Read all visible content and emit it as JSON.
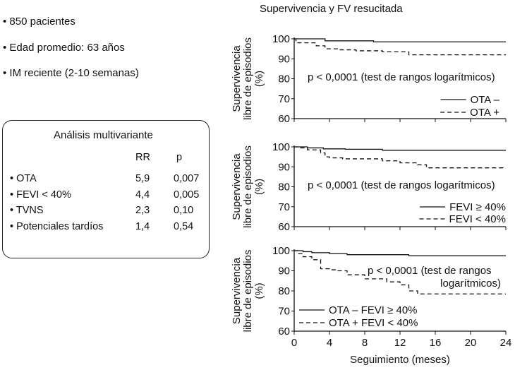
{
  "bullets": [
    "• 850 pacientes",
    "• Edad promedio: 63 años",
    "• IM reciente (2-10 semanas)"
  ],
  "table": {
    "title": "Análisis multivariante",
    "headers": [
      "RR",
      "p"
    ],
    "rows": [
      {
        "label": "• OTA",
        "rr": "5,9",
        "p": "0,007"
      },
      {
        "label": "• FEVI < 40%",
        "rr": "4,4",
        "p": "0,005"
      },
      {
        "label": "• TVNS",
        "rr": "2,3",
        "p": "0,10"
      },
      {
        "label": "• Potenciales tardíos",
        "rr": "1,4",
        "p": "0,54"
      }
    ]
  },
  "chart_data": [
    {
      "type": "line",
      "title": "Supervivencia y FV resucitada",
      "ylabel": "Supervivencia libre de episodios (%)",
      "xlabel": "",
      "xlim": [
        0,
        24
      ],
      "ylim": [
        60,
        100
      ],
      "yticks": [
        60,
        70,
        80,
        90,
        100
      ],
      "xticks": [
        0,
        4,
        8,
        12,
        16,
        20,
        24
      ],
      "annotation": [
        "p < 0,0001 (test de rangos logarítmicos)"
      ],
      "series": [
        {
          "name": "OTA –",
          "style": "solid",
          "x": [
            0,
            3.5,
            3.5,
            9,
            9,
            24
          ],
          "y": [
            100,
            100,
            99,
            99,
            98.5,
            98.5
          ]
        },
        {
          "name": "OTA +",
          "style": "dashed",
          "x": [
            0,
            0.2,
            0.2,
            2.5,
            2.5,
            3.5,
            3.5,
            5,
            5,
            7,
            7,
            10,
            10,
            13,
            13,
            24
          ],
          "y": [
            100,
            100,
            98,
            98,
            96.5,
            96.5,
            95,
            95,
            94.5,
            94.5,
            94,
            94,
            93.5,
            93.5,
            92,
            92
          ]
        }
      ]
    },
    {
      "type": "line",
      "ylabel": "Supervivencia libre de episodios (%)",
      "xlabel": "",
      "xlim": [
        0,
        24
      ],
      "ylim": [
        60,
        100
      ],
      "yticks": [
        60,
        70,
        80,
        90,
        100
      ],
      "xticks": [
        0,
        4,
        8,
        12,
        16,
        20,
        24
      ],
      "annotation": [
        "p < 0,0001 (test de rangos logarítmicos)"
      ],
      "series": [
        {
          "name": "FEVI ≥ 40%",
          "style": "solid",
          "x": [
            0,
            1.5,
            1.5,
            3.3,
            3.3,
            5.8,
            5.8,
            10,
            10,
            24
          ],
          "y": [
            100,
            100,
            99.5,
            99.5,
            99,
            99,
            98.8,
            98.8,
            98.3,
            98.3
          ]
        },
        {
          "name": "FEVI < 40%",
          "style": "dashed",
          "x": [
            0,
            0.5,
            0.5,
            1.5,
            1.5,
            3,
            3,
            3.5,
            3.5,
            4,
            4,
            5.5,
            5.5,
            10,
            10,
            12,
            12,
            14,
            14,
            15,
            15,
            24
          ],
          "y": [
            100,
            100,
            99.5,
            99.5,
            98.5,
            98.5,
            97,
            97,
            95,
            95,
            94.5,
            94.5,
            94,
            94,
            93,
            93,
            92,
            92,
            91,
            91,
            89.5,
            89.5
          ]
        }
      ]
    },
    {
      "type": "line",
      "ylabel": "Supervivencia libre de episodios (%)",
      "xlabel": "Seguimiento (meses)",
      "xlim": [
        0,
        24
      ],
      "ylim": [
        60,
        100
      ],
      "yticks": [
        60,
        70,
        80,
        90,
        100
      ],
      "xticks": [
        0,
        4,
        8,
        12,
        16,
        20,
        24
      ],
      "annotation": [
        "p < 0,0001  (test de rangos",
        "logarítmicos)"
      ],
      "series": [
        {
          "name": "OTA – FEVI ≥ 40%",
          "style": "solid",
          "x": [
            0,
            1,
            1,
            2,
            2,
            4,
            4,
            6,
            6,
            13,
            13,
            24
          ],
          "y": [
            100,
            100,
            99.5,
            99.5,
            99,
            99,
            98.5,
            98.5,
            98,
            98,
            97.5,
            97.5
          ]
        },
        {
          "name": "OTA + FEVI < 40%",
          "style": "dashed",
          "x": [
            0,
            0.5,
            0.5,
            1,
            1,
            2,
            2,
            3,
            3,
            4,
            4,
            4.8,
            4.8,
            6,
            6,
            8,
            8,
            10.5,
            10.5,
            12,
            12,
            13,
            13,
            14,
            14,
            24
          ],
          "y": [
            100,
            100,
            98.5,
            98.5,
            97,
            97,
            95.5,
            95.5,
            91,
            91,
            90.5,
            90.5,
            90,
            90,
            88,
            88,
            86,
            86,
            84.5,
            84.5,
            83,
            83,
            80,
            80,
            78.5,
            78.5
          ]
        }
      ]
    }
  ]
}
